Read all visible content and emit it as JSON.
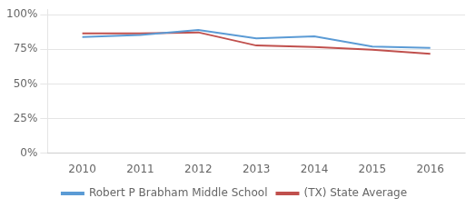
{
  "chart_data": {
    "type": "line",
    "x": [
      2010,
      2011,
      2012,
      2013,
      2014,
      2015,
      2016
    ],
    "xlim": [
      2009.4,
      2016.6
    ],
    "xticks": [
      2010,
      2011,
      2012,
      2013,
      2014,
      2015,
      2016
    ],
    "ylim": [
      0.0,
      1.04
    ],
    "yticks": [
      {
        "value": 0.0,
        "label": "0%"
      },
      {
        "value": 0.25,
        "label": "25%"
      },
      {
        "value": 0.5,
        "label": "50%"
      },
      {
        "value": 0.75,
        "label": "75%"
      },
      {
        "value": 1.0,
        "label": "100%"
      }
    ],
    "grid": true,
    "legend": "bottom",
    "series": [
      {
        "name": "Robert P Brabham Middle School",
        "color": "#5b9bd5",
        "values": [
          0.84,
          0.855,
          0.89,
          0.83,
          0.845,
          0.77,
          0.76
        ]
      },
      {
        "name": "(TX) State Average",
        "color": "#c0504d",
        "values": [
          0.865,
          0.865,
          0.873,
          0.778,
          0.768,
          0.748,
          0.718
        ]
      }
    ]
  }
}
